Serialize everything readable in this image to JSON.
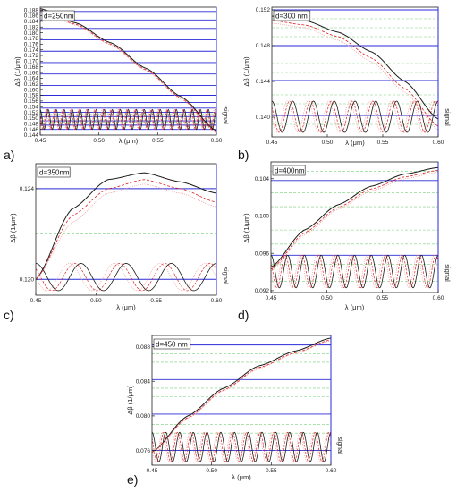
{
  "colors": {
    "blue": "#2a2ad8",
    "black": "#1a1a1a",
    "red": "#e02020",
    "pink": "#f08a8a",
    "green": "#7ad07a",
    "axis": "#222222"
  },
  "chart_data": [
    {
      "type": "line",
      "panel_label": "a)",
      "thickness_label": "d=250nm",
      "xlabel": "λ (μm)",
      "ylabel": "Δβ (1/μm)",
      "right_label": "signal",
      "xlim": [
        0.45,
        0.6
      ],
      "ylim": [
        0.144,
        0.189
      ],
      "x_ticks": [
        "0.45",
        "0.50",
        "0.55",
        "0.60"
      ],
      "y_ticks": [
        "0.144",
        "0.146",
        "0.148",
        "0.150",
        "0.152",
        "0.154",
        "0.156",
        "0.158",
        "0.160",
        "0.162",
        "0.164",
        "0.166",
        "0.168",
        "0.170",
        "0.172",
        "0.174",
        "0.176",
        "0.178",
        "0.180",
        "0.182",
        "0.184",
        "0.186",
        "0.188"
      ],
      "series": [
        {
          "style": "solid-black",
          "x": [
            0.45,
            0.48,
            0.51,
            0.54,
            0.57,
            0.6
          ],
          "y": [
            0.1885,
            0.1835,
            0.1765,
            0.1675,
            0.1575,
            0.1455
          ]
        },
        {
          "style": "dash-red",
          "x": [
            0.45,
            0.48,
            0.51,
            0.54,
            0.57,
            0.6
          ],
          "y": [
            0.188,
            0.183,
            0.176,
            0.167,
            0.157,
            0.145
          ]
        },
        {
          "style": "dot-pink",
          "x": [
            0.45,
            0.48,
            0.51,
            0.54,
            0.57,
            0.6
          ],
          "y": [
            0.1877,
            0.1827,
            0.1757,
            0.1667,
            0.1567,
            0.1447
          ]
        }
      ],
      "signal_band": [
        0.146,
        0.153
      ],
      "signal_cycles": 22,
      "blue_levels": [
        0.146,
        0.1475,
        0.149,
        0.1505,
        0.152,
        0.1535,
        0.1555,
        0.158,
        0.1615,
        0.1655,
        0.1695,
        0.1735,
        0.1775,
        0.1815,
        0.1845,
        0.1875
      ],
      "green_levels": [
        0.1485,
        0.1515
      ]
    },
    {
      "type": "line",
      "panel_label": "b)",
      "thickness_label": "d=300 nm",
      "xlabel": "λ (μm)",
      "ylabel": "Δβ (1/μm)",
      "right_label": "signal",
      "xlim": [
        0.45,
        0.6
      ],
      "ylim": [
        0.1378,
        0.1523
      ],
      "x_ticks": [
        "0.45",
        "0.50",
        "0.55",
        "0.60"
      ],
      "y_ticks": [
        "0.140",
        "0.144",
        "0.148",
        "0.152"
      ],
      "series": [
        {
          "style": "solid-black",
          "x": [
            0.45,
            0.48,
            0.51,
            0.54,
            0.57,
            0.6
          ],
          "y": [
            0.1513,
            0.1508,
            0.1495,
            0.1473,
            0.144,
            0.1398
          ]
        },
        {
          "style": "dash-red",
          "x": [
            0.45,
            0.48,
            0.51,
            0.54,
            0.57,
            0.6
          ],
          "y": [
            0.1508,
            0.1503,
            0.149,
            0.1466,
            0.1432,
            0.139
          ]
        },
        {
          "style": "dot-pink",
          "x": [
            0.45,
            0.48,
            0.51,
            0.54,
            0.57,
            0.6
          ],
          "y": [
            0.1505,
            0.15,
            0.1486,
            0.1462,
            0.1428,
            0.1386
          ]
        }
      ],
      "signal_band": [
        0.1383,
        0.1418
      ],
      "signal_cycles": 8,
      "blue_levels": [
        0.1402,
        0.1441,
        0.148,
        0.152
      ],
      "green_levels": [
        0.1392,
        0.1415,
        0.1425,
        0.145,
        0.146,
        0.149,
        0.15,
        0.151
      ]
    },
    {
      "type": "line",
      "panel_label": "c)",
      "thickness_label": "d=350nm",
      "xlabel": "λ (μm)",
      "ylabel": "Δβ (1/μm)",
      "right_label": "signal",
      "xlim": [
        0.45,
        0.6
      ],
      "ylim": [
        0.1193,
        0.1251
      ],
      "x_ticks": [
        "0.45",
        "0.50",
        "0.55",
        "0.60"
      ],
      "y_ticks": [
        "0.120",
        "0.124"
      ],
      "series": [
        {
          "style": "solid-black",
          "x": [
            0.45,
            0.48,
            0.51,
            0.54,
            0.57,
            0.6
          ],
          "y": [
            0.12,
            0.1231,
            0.1244,
            0.1247,
            0.1243,
            0.1238
          ]
        },
        {
          "style": "dash-red",
          "x": [
            0.45,
            0.48,
            0.51,
            0.54,
            0.57,
            0.6
          ],
          "y": [
            0.12,
            0.1228,
            0.124,
            0.1244,
            0.124,
            0.1234
          ]
        },
        {
          "style": "dot-pink",
          "x": [
            0.45,
            0.48,
            0.51,
            0.54,
            0.57,
            0.6
          ],
          "y": [
            0.12,
            0.1225,
            0.1238,
            0.1242,
            0.1238,
            0.1232
          ]
        }
      ],
      "signal_band": [
        0.1195,
        0.1207
      ],
      "signal_cycles": 4,
      "blue_levels": [
        0.12,
        0.124
      ],
      "green_levels": [
        0.122
      ]
    },
    {
      "type": "line",
      "panel_label": "d)",
      "thickness_label": "d=400nm",
      "xlabel": "λ (μm)",
      "ylabel": "Δβ (1/μm)",
      "right_label": "signal",
      "xlim": [
        0.45,
        0.6
      ],
      "ylim": [
        0.0918,
        0.1058
      ],
      "x_ticks": [
        "0.45",
        "0.50",
        "0.55",
        "0.60"
      ],
      "y_ticks": [
        "0.092",
        "0.096",
        "0.100",
        "0.104"
      ],
      "series": [
        {
          "style": "solid-black",
          "x": [
            0.45,
            0.48,
            0.51,
            0.54,
            0.57,
            0.6
          ],
          "y": [
            0.0945,
            0.0985,
            0.1012,
            0.1032,
            0.1045,
            0.1052
          ]
        },
        {
          "style": "dash-red",
          "x": [
            0.45,
            0.48,
            0.51,
            0.54,
            0.57,
            0.6
          ],
          "y": [
            0.0943,
            0.0982,
            0.1009,
            0.1029,
            0.1042,
            0.1049
          ]
        },
        {
          "style": "dot-pink",
          "x": [
            0.45,
            0.48,
            0.51,
            0.54,
            0.57,
            0.6
          ],
          "y": [
            0.0941,
            0.098,
            0.1007,
            0.1027,
            0.104,
            0.1047
          ]
        }
      ],
      "signal_band": [
        0.0923,
        0.0958
      ],
      "signal_cycles": 10,
      "blue_levels": [
        0.0958,
        0.1,
        0.1038
      ],
      "green_levels": [
        0.093,
        0.0948,
        0.097,
        0.0985,
        0.101,
        0.1025,
        0.1048
      ]
    },
    {
      "type": "line",
      "panel_label": "e)",
      "thickness_label": "d=450 nm",
      "xlabel": "λ (μm)",
      "ylabel": "Δβ (1/μm)",
      "right_label": "signal",
      "xlim": [
        0.45,
        0.6
      ],
      "ylim": [
        0.0743,
        0.0893
      ],
      "x_ticks": [
        "0.45",
        "0.50",
        "0.55",
        "0.60"
      ],
      "y_ticks": [
        "0.076",
        "0.080",
        "0.084",
        "0.088"
      ],
      "series": [
        {
          "style": "solid-black",
          "x": [
            0.45,
            0.48,
            0.51,
            0.54,
            0.57,
            0.6
          ],
          "y": [
            0.0758,
            0.08,
            0.0832,
            0.0858,
            0.0875,
            0.089
          ]
        },
        {
          "style": "dash-red",
          "x": [
            0.45,
            0.48,
            0.51,
            0.54,
            0.57,
            0.6
          ],
          "y": [
            0.0758,
            0.0798,
            0.083,
            0.0856,
            0.0873,
            0.0888
          ]
        },
        {
          "style": "dot-pink",
          "x": [
            0.45,
            0.48,
            0.51,
            0.54,
            0.57,
            0.6
          ],
          "y": [
            0.0758,
            0.0797,
            0.0829,
            0.0855,
            0.0872,
            0.0887
          ]
        }
      ],
      "signal_band": [
        0.0747,
        0.0781
      ],
      "signal_cycles": 13,
      "blue_levels": [
        0.076,
        0.0802,
        0.0842,
        0.0882
      ],
      "green_levels": [
        0.078,
        0.079,
        0.0822,
        0.0832,
        0.0862,
        0.0872
      ]
    }
  ]
}
